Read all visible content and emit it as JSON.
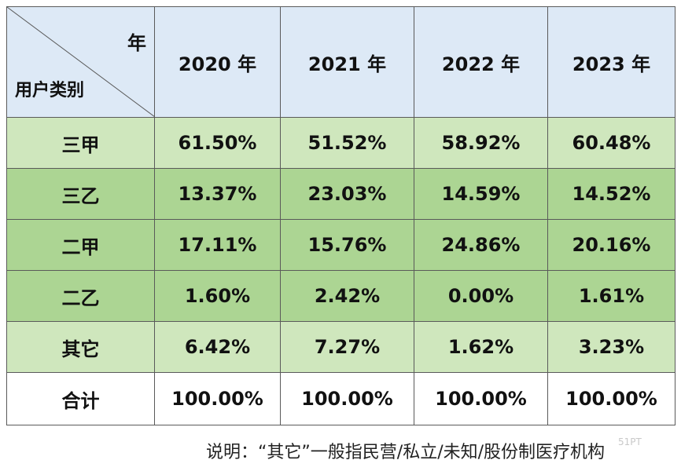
{
  "header": {
    "corner_year": "年",
    "corner_user": "用户类别",
    "years": [
      "2020 年",
      "2021 年",
      "2022 年",
      "2023 年"
    ]
  },
  "rows": [
    {
      "label": "三甲",
      "values": [
        "61.50%",
        "51.52%",
        "58.92%",
        "60.48%"
      ]
    },
    {
      "label": "三乙",
      "values": [
        "13.37%",
        "23.03%",
        "14.59%",
        "14.52%"
      ]
    },
    {
      "label": "二甲",
      "values": [
        "17.11%",
        "15.76%",
        "24.86%",
        "20.16%"
      ]
    },
    {
      "label": "二乙",
      "values": [
        "1.60%",
        "2.42%",
        "0.00%",
        "1.61%"
      ]
    },
    {
      "label": "其它",
      "values": [
        "6.42%",
        "7.27%",
        "1.62%",
        "3.23%"
      ]
    },
    {
      "label": "合计",
      "values": [
        "100.00%",
        "100.00%",
        "100.00%",
        "100.00%"
      ]
    }
  ],
  "note": "说明：“其它”一般指民营/私立/未知/股份制医疗机构",
  "watermark": "51PT"
}
